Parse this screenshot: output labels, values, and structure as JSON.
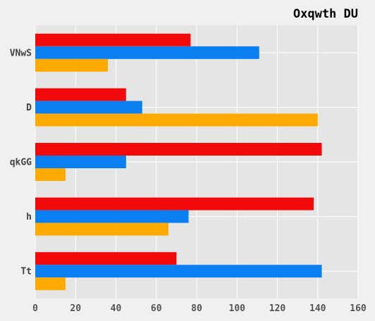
{
  "chart_data": {
    "type": "bar",
    "orientation": "horizontal",
    "title": "Oxqwth DU",
    "xlabel": "",
    "ylabel": "",
    "categories": [
      "VNwS",
      "D",
      "qkGG",
      "h",
      "Tt"
    ],
    "series": [
      {
        "color": "#f20a0a",
        "values": [
          77,
          45,
          142,
          138,
          70
        ]
      },
      {
        "color": "#0a7ff2",
        "values": [
          111,
          53,
          45,
          76,
          142
        ]
      },
      {
        "color": "#ffaa00",
        "values": [
          36,
          140,
          15,
          66,
          15
        ]
      }
    ],
    "xlim": [
      0,
      160
    ],
    "xticks": [
      0,
      20,
      40,
      60,
      80,
      100,
      120,
      140,
      160
    ],
    "grid": true,
    "legend": "none",
    "plot_background": "#e5e5e5",
    "figure_background": "#f0f0f0",
    "grid_color": "#ffffff"
  }
}
